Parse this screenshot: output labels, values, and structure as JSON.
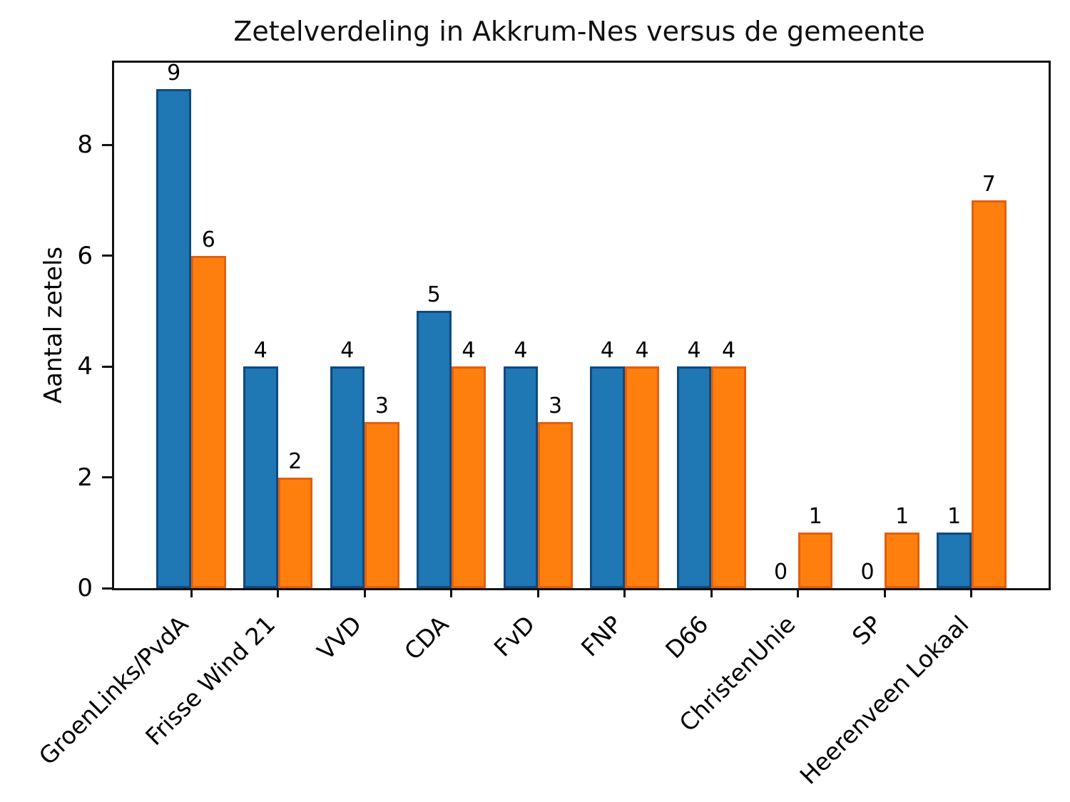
{
  "title": "Zetelverdeling in Akkrum-Nes versus de gemeente",
  "chart_data": {
    "type": "bar",
    "title": "Zetelverdeling in Akkrum-Nes versus de gemeente",
    "xlabel": "",
    "ylabel": "Aantal zetels",
    "categories": [
      "GroenLinks/PvdA",
      "Frisse Wind 21",
      "VVD",
      "CDA",
      "FvD",
      "FNP",
      "D66",
      "ChristenUnie",
      "SP",
      "Heerenveen Lokaal"
    ],
    "series": [
      {
        "name": "blue",
        "color": "#1f77b4",
        "edge_color": "#10497e",
        "values": [
          9,
          4,
          4,
          5,
          4,
          4,
          4,
          0,
          0,
          1
        ]
      },
      {
        "name": "orange",
        "color": "#ff7f0e",
        "edge_color": "#e2600f",
        "values": [
          6,
          2,
          3,
          4,
          3,
          4,
          4,
          1,
          1,
          7
        ]
      }
    ],
    "bar_value_labels": [
      [
        "9",
        "4",
        "4",
        "5",
        "4",
        "4",
        "4",
        "0",
        "0",
        "1"
      ],
      [
        "6",
        "2",
        "3",
        "4",
        "3",
        "4",
        "4",
        "1",
        "1",
        "7"
      ]
    ],
    "yticks": [
      "0",
      "2",
      "4",
      "6",
      "8"
    ],
    "ytick_values": [
      0,
      2,
      4,
      6,
      8
    ],
    "ylim": [
      0,
      9.48
    ],
    "grid": false,
    "legend": "none",
    "xtick_rotation_deg": 45
  }
}
